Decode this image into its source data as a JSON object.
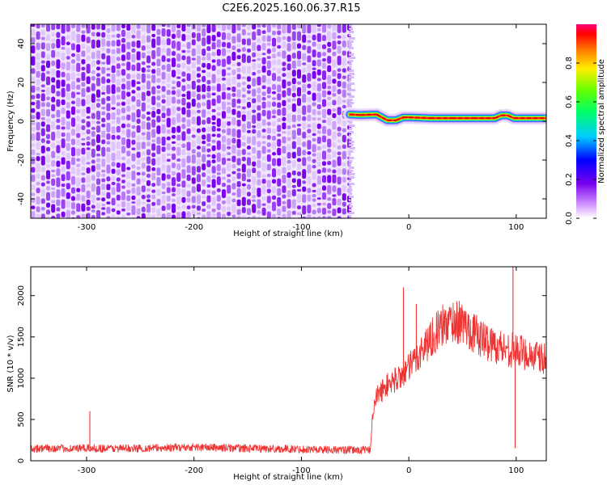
{
  "title": "C2E6.2025.160.06.37.R15",
  "chart_data": [
    {
      "type": "heatmap",
      "xlabel": "Height of straight line (km)",
      "ylabel": "Frequency (Hz)",
      "xlim": [
        -352,
        128
      ],
      "ylim": [
        -50,
        50
      ],
      "x_ticks": [
        "-300",
        "-200",
        "-100",
        "0",
        "100"
      ],
      "y_ticks": [
        "-40",
        "-20",
        "0",
        "20",
        "40"
      ],
      "noise_region_x": [
        -352,
        -55
      ],
      "ridge": {
        "x": [
          -55,
          -45,
          -30,
          -20,
          -12,
          -5,
          0,
          20,
          40,
          60,
          80,
          86,
          92,
          98,
          110,
          128
        ],
        "freq": [
          3.5,
          3.2,
          3.5,
          0.5,
          0.5,
          2.0,
          2.0,
          1.6,
          1.6,
          1.6,
          1.6,
          3.0,
          3.0,
          1.6,
          1.6,
          1.6
        ]
      },
      "colorbar": {
        "label": "Normalized spectral amplitude",
        "range": [
          0,
          1
        ],
        "ticks": [
          "0.0",
          "0.2",
          "0.4",
          "0.6",
          "0.8"
        ]
      }
    },
    {
      "type": "line",
      "xlabel": "Height of straight line (km)",
      "ylabel": "SNR (10 * v/v)",
      "xlim": [
        -352,
        128
      ],
      "ylim": [
        0,
        2350
      ],
      "x_ticks": [
        "-300",
        "-200",
        "-100",
        "0",
        "100"
      ],
      "y_ticks": [
        "0",
        "500",
        "1000",
        "1500",
        "2000"
      ],
      "color": "#ee3333",
      "series": [
        {
          "x": [
            -352,
            -300,
            -250,
            -200,
            -150,
            -100,
            -60,
            -36,
            -34,
            -30,
            -20,
            -10,
            0,
            10,
            20,
            30,
            40,
            50,
            60,
            70,
            80,
            90,
            100,
            110,
            120,
            128
          ],
          "y": [
            150,
            150,
            150,
            165,
            150,
            140,
            130,
            130,
            520,
            780,
            920,
            1000,
            1120,
            1300,
            1480,
            1620,
            1700,
            1660,
            1560,
            1460,
            1400,
            1360,
            1330,
            1300,
            1250,
            1220
          ]
        }
      ],
      "spikes": [
        {
          "x": -297,
          "y": 600
        },
        {
          "x": -5,
          "y": 2100
        },
        {
          "x": 7,
          "y": 1900
        },
        {
          "x": 97,
          "y": 2350
        },
        {
          "x": 99,
          "y": 150
        }
      ]
    }
  ]
}
